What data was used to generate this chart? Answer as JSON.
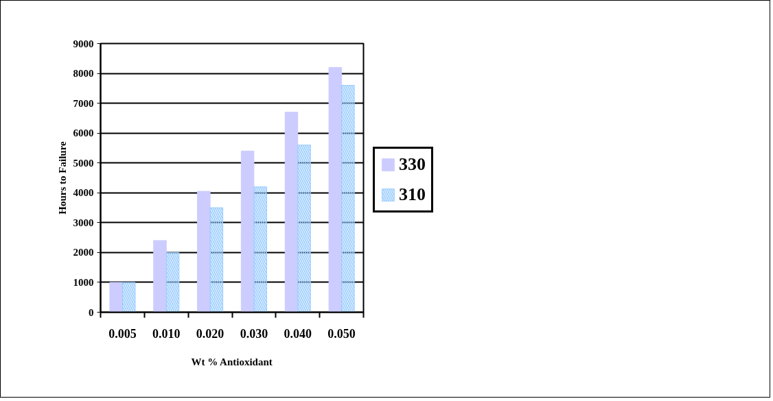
{
  "chart_data": {
    "type": "bar",
    "xlabel": "Wt % Antioxidant",
    "ylabel": "Hours to Failure",
    "categories": [
      "0.005",
      "0.010",
      "0.020",
      "0.030",
      "0.040",
      "0.050"
    ],
    "series": [
      {
        "name": "330",
        "color": "#ccccff",
        "values": [
          1000,
          2400,
          4050,
          5400,
          6700,
          8200
        ]
      },
      {
        "name": "310",
        "color": "#99ccff",
        "values": [
          1000,
          2000,
          3500,
          4200,
          5600,
          7600
        ]
      }
    ],
    "ylim": [
      0,
      9000
    ],
    "yticks": [
      0,
      1000,
      2000,
      3000,
      4000,
      5000,
      6000,
      7000,
      8000,
      9000
    ],
    "grid": "y",
    "legend": "right"
  }
}
